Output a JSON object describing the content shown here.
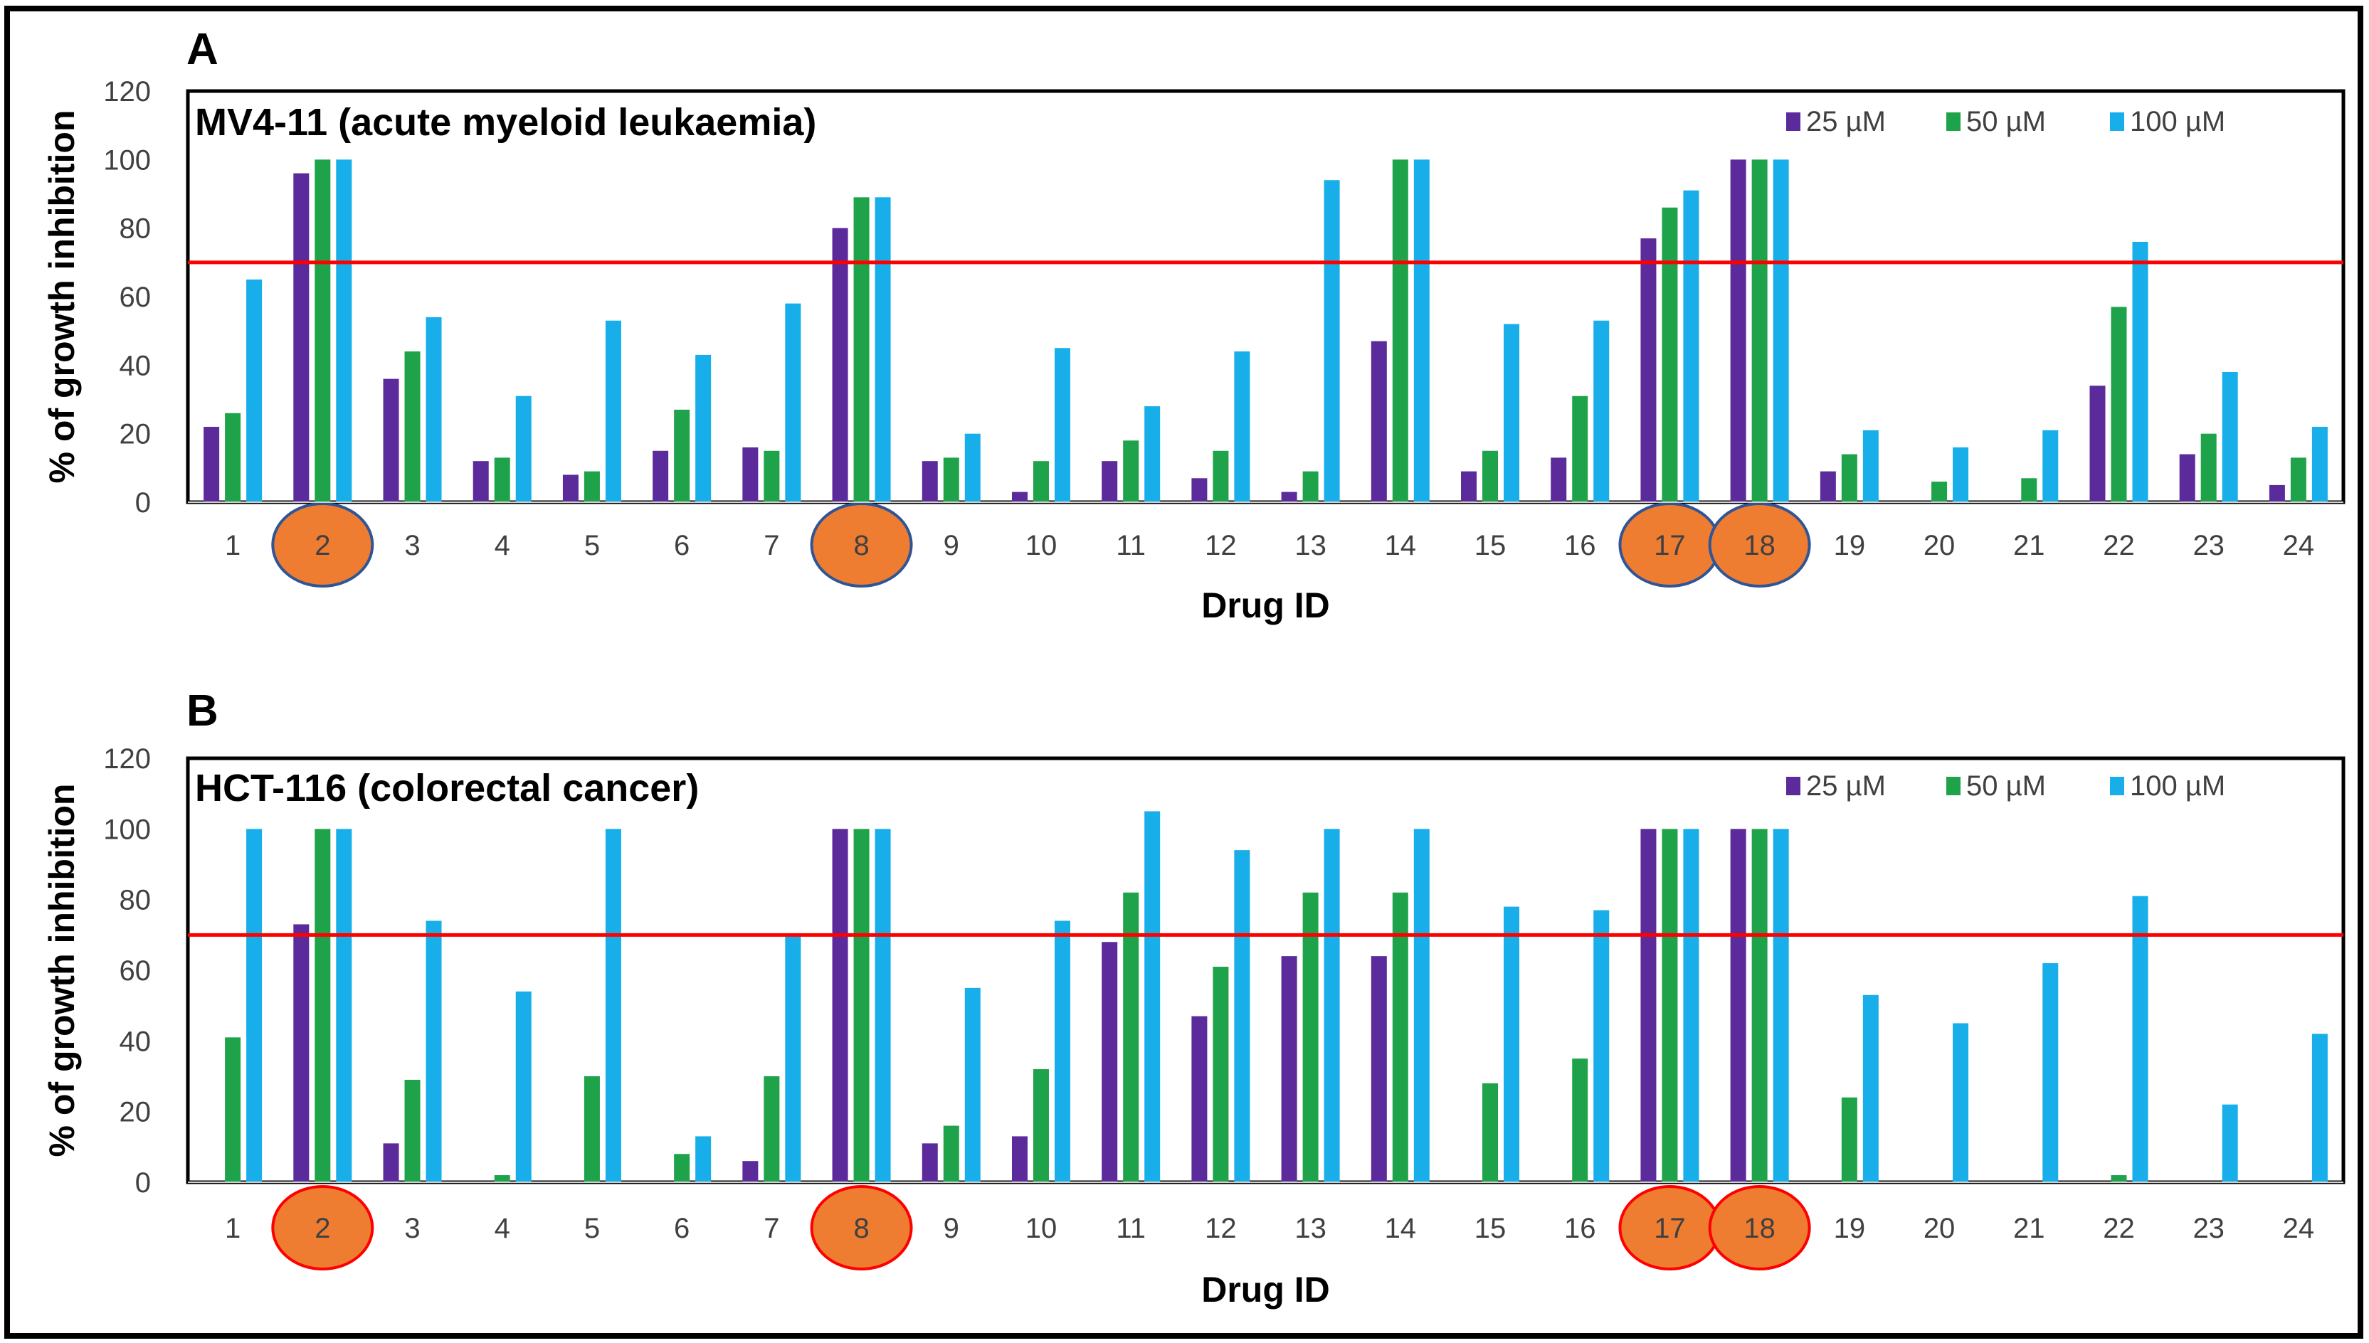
{
  "colors": {
    "c25": "#5b2a9b",
    "c50": "#1fa34a",
    "c100": "#17aeea",
    "threshold": "#ff0000",
    "highlight_fill": "#ee7d31",
    "highlight_stroke_a": "#2f5597",
    "highlight_stroke_b": "#ff0000"
  },
  "chart_data": [
    {
      "panel": "A",
      "type": "bar",
      "title": "MV4-11 (acute myeloid leukaemia)",
      "xlabel": "Drug ID",
      "ylabel": "% of growth inhibition",
      "ylim": [
        0,
        120
      ],
      "yticks": [
        0,
        20,
        40,
        60,
        80,
        100,
        120
      ],
      "threshold": 70,
      "categories": [
        "1",
        "2",
        "3",
        "4",
        "5",
        "6",
        "7",
        "8",
        "9",
        "10",
        "11",
        "12",
        "13",
        "14",
        "15",
        "16",
        "17",
        "18",
        "19",
        "20",
        "21",
        "22",
        "23",
        "24"
      ],
      "highlighted": [
        "2",
        "8",
        "17",
        "18"
      ],
      "legend": [
        "25 µM",
        "50 µM",
        "100 µM"
      ],
      "series": [
        {
          "name": "25 µM",
          "values": [
            22,
            96,
            36,
            12,
            8,
            15,
            16,
            80,
            12,
            3,
            12,
            7,
            3,
            47,
            9,
            13,
            77,
            100,
            9,
            0,
            0,
            34,
            14,
            5
          ]
        },
        {
          "name": "50 µM",
          "values": [
            26,
            100,
            44,
            13,
            9,
            27,
            15,
            89,
            13,
            12,
            18,
            15,
            9,
            100,
            15,
            31,
            86,
            100,
            14,
            6,
            7,
            57,
            20,
            13
          ]
        },
        {
          "name": "100 µM",
          "values": [
            65,
            100,
            54,
            31,
            53,
            43,
            58,
            89,
            20,
            45,
            28,
            44,
            94,
            100,
            52,
            53,
            91,
            100,
            21,
            16,
            21,
            76,
            38,
            22
          ]
        }
      ]
    },
    {
      "panel": "B",
      "type": "bar",
      "title": "HCT-116 (colorectal cancer)",
      "xlabel": "Drug ID",
      "ylabel": "% of growth inhibition",
      "ylim": [
        0,
        120
      ],
      "yticks": [
        0,
        20,
        40,
        60,
        80,
        100,
        120
      ],
      "threshold": 70,
      "categories": [
        "1",
        "2",
        "3",
        "4",
        "5",
        "6",
        "7",
        "8",
        "9",
        "10",
        "11",
        "12",
        "13",
        "14",
        "15",
        "16",
        "17",
        "18",
        "19",
        "20",
        "21",
        "22",
        "23",
        "24"
      ],
      "highlighted": [
        "2",
        "8",
        "17",
        "18"
      ],
      "legend": [
        "25 µM",
        "50 µM",
        "100 µM"
      ],
      "series": [
        {
          "name": "25 µM",
          "values": [
            0,
            73,
            11,
            0,
            0,
            0,
            6,
            100,
            11,
            13,
            68,
            47,
            64,
            64,
            0,
            0,
            100,
            100,
            0,
            0,
            0,
            0,
            0,
            0
          ]
        },
        {
          "name": "50 µM",
          "values": [
            41,
            100,
            29,
            2,
            30,
            8,
            30,
            100,
            16,
            32,
            82,
            61,
            82,
            82,
            28,
            35,
            100,
            100,
            24,
            0,
            0,
            2,
            0,
            0
          ]
        },
        {
          "name": "100 µM",
          "values": [
            100,
            100,
            74,
            54,
            100,
            13,
            70,
            100,
            55,
            74,
            105,
            94,
            100,
            100,
            78,
            77,
            100,
            100,
            53,
            45,
            62,
            81,
            22,
            42
          ]
        }
      ]
    }
  ]
}
